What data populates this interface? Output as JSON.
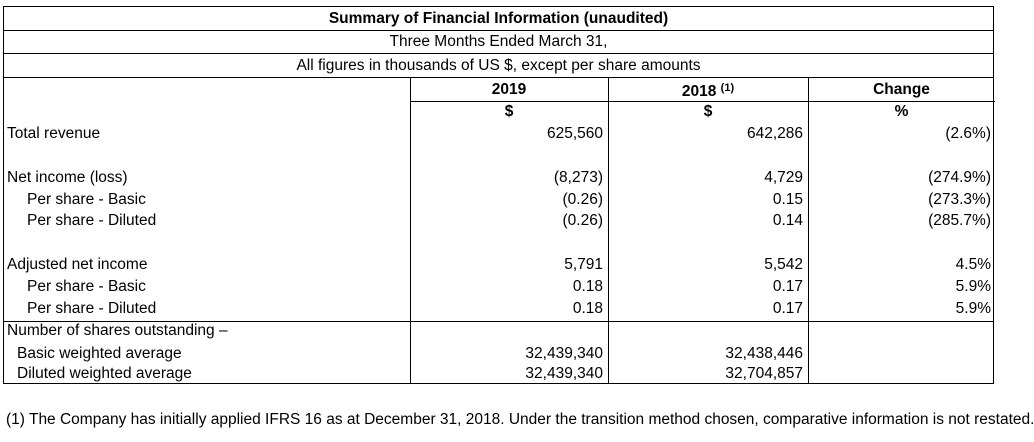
{
  "table": {
    "title": "Summary of Financial Information (unaudited)",
    "period": "Three Months Ended March 31,",
    "units_note": "All figures in thousands of US $, except per share amounts",
    "headers": {
      "col1": "2019",
      "col2": "2018",
      "col2_sup": "(1)",
      "col3": "Change",
      "col1_unit": "$",
      "col2_unit": "$",
      "col3_unit": "%"
    },
    "rows": [
      {
        "label": "Total revenue",
        "v2019": "625,560",
        "v2018": "642,286",
        "change": "(2.6%)"
      },
      {
        "label": "Net income (loss)",
        "v2019": "(8,273)",
        "v2018": "4,729",
        "change": "(274.9%)"
      },
      {
        "label": "Per share - Basic",
        "v2019": "(0.26)",
        "v2018": "0.15",
        "change": "(273.3%)"
      },
      {
        "label": "Per share - Diluted",
        "v2019": "(0.26)",
        "v2018": "0.14",
        "change": "(285.7%)"
      },
      {
        "label": "Adjusted net income",
        "v2019": "5,791",
        "v2018": "5,542",
        "change": "4.5%"
      },
      {
        "label": "Per share - Basic",
        "v2019": "0.18",
        "v2018": "0.17",
        "change": "5.9%"
      },
      {
        "label": "Per share - Diluted",
        "v2019": "0.18",
        "v2018": "0.17",
        "change": "5.9%"
      },
      {
        "label": "Number of shares outstanding –",
        "v2019": "",
        "v2018": "",
        "change": ""
      },
      {
        "label": "Basic weighted average",
        "v2019": "32,439,340",
        "v2018": "32,438,446",
        "change": ""
      },
      {
        "label": "Diluted weighted average",
        "v2019": "32,439,340",
        "v2018": "32,704,857",
        "change": ""
      }
    ]
  },
  "footnote": "(1) The Company has initially applied IFRS 16 as at December 31, 2018. Under the transition method chosen, comparative information is not restated."
}
